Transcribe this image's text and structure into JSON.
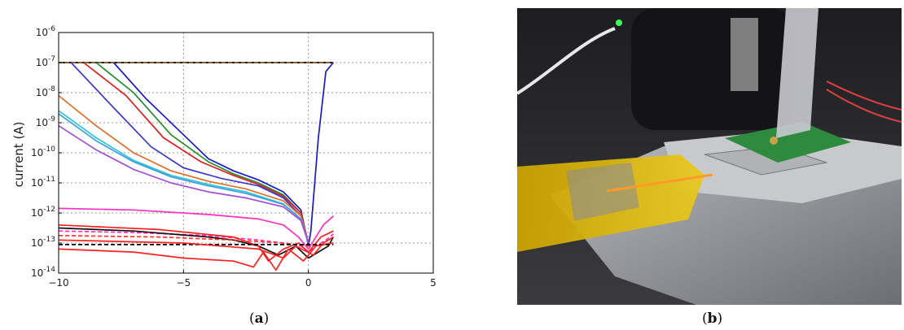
{
  "chart_data": {
    "type": "line",
    "title": "",
    "xlabel": "",
    "ylabel": "current (A)",
    "xlim": [
      -10,
      5
    ],
    "ylim_exp": [
      -14,
      -6
    ],
    "y_scale": "log",
    "grid": true,
    "legend": "none",
    "x_ticks": [
      "−10",
      "−5",
      "0",
      "5"
    ],
    "x_tick_values": [
      -10,
      -5,
      0,
      5
    ],
    "y_ticks": [
      {
        "base": "10",
        "exp": "-14",
        "value": -14
      },
      {
        "base": "10",
        "exp": "-13",
        "value": -13
      },
      {
        "base": "10",
        "exp": "-12",
        "value": -12
      },
      {
        "base": "10",
        "exp": "-11",
        "value": -11
      },
      {
        "base": "10",
        "exp": "-10",
        "value": -10
      },
      {
        "base": "10",
        "exp": "-9",
        "value": -9
      },
      {
        "base": "10",
        "exp": "-8",
        "value": -8
      },
      {
        "base": "10",
        "exp": "-7",
        "value": -7
      },
      {
        "base": "10",
        "exp": "-6",
        "value": -6
      }
    ],
    "series": [
      {
        "color": "#000000",
        "dash": false,
        "x": [
          -10,
          1
        ],
        "y": [
          -7,
          -7
        ]
      },
      {
        "color": "#8b6a3a",
        "dash": true,
        "x": [
          -10,
          1
        ],
        "y": [
          -7,
          -7
        ]
      },
      {
        "color": "#1a1acc",
        "dash": false,
        "x": [
          -7.8,
          -6.5,
          -5,
          -4,
          -3,
          -2,
          -1,
          -0.3,
          0,
          0.1,
          0.4,
          0.7,
          1
        ],
        "y": [
          -7,
          -8.2,
          -9.4,
          -10.2,
          -10.6,
          -10.9,
          -11.3,
          -11.9,
          -13.1,
          -12.6,
          -9.5,
          -7.3,
          -7
        ]
      },
      {
        "color": "#1f8f2a",
        "dash": false,
        "x": [
          -8.5,
          -7,
          -5.5,
          -4,
          -3,
          -2,
          -1,
          -0.3,
          0
        ],
        "y": [
          -7,
          -8,
          -9.4,
          -10.3,
          -10.7,
          -11,
          -11.4,
          -12,
          -13
        ]
      },
      {
        "color": "#e21f1f",
        "dash": false,
        "x": [
          -9,
          -7.3,
          -5.8,
          -4.3,
          -3,
          -2,
          -1,
          -0.3,
          0
        ],
        "y": [
          -7,
          -8.1,
          -9.5,
          -10.3,
          -10.75,
          -11.05,
          -11.45,
          -12,
          -13
        ]
      },
      {
        "color": "#3a3acc",
        "dash": false,
        "x": [
          -9.5,
          -7.8,
          -6.3,
          -5,
          -3.5,
          -2,
          -1,
          -0.3,
          0
        ],
        "y": [
          -7,
          -8.5,
          -9.8,
          -10.5,
          -10.85,
          -11.1,
          -11.5,
          -12.1,
          -13
        ]
      },
      {
        "color": "#e0702a",
        "dash": false,
        "x": [
          -10,
          -8.5,
          -7,
          -5.5,
          -4,
          -2.5,
          -1,
          -0.3,
          0
        ],
        "y": [
          -8.1,
          -9.1,
          -10,
          -10.6,
          -10.95,
          -11.2,
          -11.6,
          -12.1,
          -13
        ]
      },
      {
        "color": "#2ec4d9",
        "dash": false,
        "x": [
          -10,
          -8.5,
          -7,
          -5.5,
          -4,
          -2.5,
          -1,
          -0.3,
          0
        ],
        "y": [
          -8.6,
          -9.5,
          -10.25,
          -10.75,
          -11.05,
          -11.3,
          -11.7,
          -12.2,
          -13
        ]
      },
      {
        "color": "#3fa0e0",
        "dash": false,
        "x": [
          -10,
          -8.5,
          -7,
          -5.5,
          -4,
          -2.5,
          -1,
          -0.3,
          0
        ],
        "y": [
          -8.7,
          -9.6,
          -10.3,
          -10.8,
          -11.1,
          -11.35,
          -11.72,
          -12.2,
          -13
        ]
      },
      {
        "color": "#a04fd6",
        "dash": false,
        "x": [
          -10,
          -8.5,
          -7,
          -5.5,
          -4,
          -2.5,
          -1,
          -0.3,
          0
        ],
        "y": [
          -9.1,
          -9.9,
          -10.55,
          -11,
          -11.3,
          -11.5,
          -11.8,
          -12.25,
          -13
        ]
      },
      {
        "color": "#ff2fbf",
        "dash": false,
        "x": [
          -10,
          -7,
          -4,
          -2,
          -1,
          -0.4,
          0,
          0.3,
          0.6,
          1
        ],
        "y": [
          -11.85,
          -11.9,
          -12.05,
          -12.2,
          -12.4,
          -12.8,
          -13.2,
          -12.8,
          -12.4,
          -12.1
        ]
      },
      {
        "color": "#ff2fbf",
        "dash": true,
        "x": [
          -10,
          -7,
          -4,
          -2,
          -1,
          -0.3,
          0,
          0.3,
          0.7,
          1
        ],
        "y": [
          -12.6,
          -12.65,
          -12.75,
          -12.9,
          -13,
          -13.1,
          -13.3,
          -13.1,
          -12.9,
          -12.7
        ]
      },
      {
        "color": "#111111",
        "dash": false,
        "x": [
          -10,
          -7,
          -4,
          -3,
          -2,
          -1.2,
          -0.5,
          0,
          0.4,
          0.8,
          1
        ],
        "y": [
          -12.5,
          -12.6,
          -12.8,
          -12.9,
          -13.1,
          -13.4,
          -13.1,
          -13.5,
          -13.3,
          -13.1,
          -12.8
        ]
      },
      {
        "color": "#ff1f1f",
        "dash": false,
        "x": [
          -10,
          -6,
          -3,
          -2,
          -1.6,
          -1,
          -0.4,
          0,
          0.5,
          1
        ],
        "y": [
          -12.4,
          -12.55,
          -12.8,
          -13.1,
          -13.6,
          -13.2,
          -13.0,
          -13.3,
          -12.8,
          -12.6
        ]
      },
      {
        "color": "#ff2020",
        "dash": false,
        "x": [
          -10,
          -7,
          -5,
          -3,
          -2.2,
          -1.8,
          -1.3,
          -0.8,
          -0.2,
          0.3,
          1
        ],
        "y": [
          -13.2,
          -13.3,
          -13.5,
          -13.6,
          -13.8,
          -13.3,
          -13.9,
          -13.2,
          -13.6,
          -13.1,
          -13.0
        ]
      },
      {
        "color": "#ff3030",
        "dash": true,
        "x": [
          -10,
          -6,
          -3,
          -1,
          0,
          0.5,
          1
        ],
        "y": [
          -12.75,
          -12.8,
          -12.9,
          -13,
          -13.1,
          -13.05,
          -13
        ]
      },
      {
        "color": "#000000",
        "dash": true,
        "x": [
          -10,
          -6,
          -3,
          -1,
          0,
          0.5,
          1
        ],
        "y": [
          -13.05,
          -13.05,
          -13.05,
          -13.05,
          -13.05,
          -13.05,
          -13.05
        ]
      },
      {
        "color": "#ff1f1f",
        "dash": false,
        "x": [
          -10,
          -5,
          -2,
          -1,
          -0.5,
          0.2,
          0.6,
          1
        ],
        "y": [
          -12.9,
          -13,
          -13.2,
          -13.5,
          -13.1,
          -13.4,
          -13.0,
          -12.8
        ]
      }
    ]
  },
  "captions": {
    "a": {
      "open": "(",
      "letter": "a",
      "close": ")"
    },
    "b": {
      "open": "(",
      "letter": "b",
      "close": ")"
    }
  },
  "photo": {
    "colors": {
      "background": "#2b2b2e",
      "stage": "#9fa1a6",
      "tape": "#d9b300",
      "pcb": "#2e8a3c",
      "chip": "#bfc1c3",
      "ribbon": "#c9c9cf"
    }
  }
}
